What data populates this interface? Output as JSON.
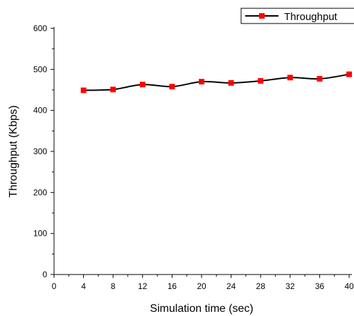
{
  "chart_data": {
    "type": "line",
    "title": "",
    "xlabel": "Simulation time (sec)",
    "ylabel": "Throughput (Kbps)",
    "xlim": [
      0,
      40
    ],
    "ylim": [
      0,
      600
    ],
    "x_ticks": [
      0,
      4,
      8,
      12,
      16,
      20,
      24,
      28,
      32,
      36,
      40
    ],
    "y_ticks": [
      0,
      100,
      200,
      300,
      400,
      500,
      600
    ],
    "grid": false,
    "legend_position": "top-right",
    "series": [
      {
        "name": "Throughput",
        "line_color": "#000000",
        "marker_color": "#ff0000",
        "marker": "square",
        "x": [
          4,
          8,
          12,
          16,
          20,
          24,
          28,
          32,
          36,
          40
        ],
        "y": [
          449,
          451,
          463,
          458,
          470,
          467,
          472,
          480,
          477,
          488
        ]
      }
    ]
  }
}
